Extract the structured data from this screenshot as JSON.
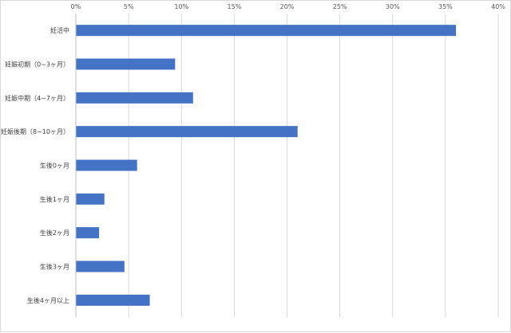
{
  "chart_data": {
    "type": "bar",
    "orientation": "horizontal",
    "categories": [
      "妊活中",
      "妊娠初期（0~3ヶ月）",
      "妊娠中期（4~7ヶ月）",
      "妊娠後期（8~10ヶ月）",
      "生後0ヶ月",
      "生後1ヶ月",
      "生後2ヶ月",
      "生後3ヶ月",
      "生後4ヶ月以上"
    ],
    "values": [
      36.0,
      9.4,
      11.1,
      21.0,
      5.8,
      2.7,
      2.2,
      4.6,
      7.0
    ],
    "value_unit": "%",
    "xlim": [
      0,
      40
    ],
    "x_ticks": [
      0,
      5,
      10,
      15,
      20,
      25,
      30,
      35,
      40
    ],
    "x_tick_labels": [
      "0%",
      "5%",
      "10%",
      "15%",
      "20%",
      "25%",
      "30%",
      "35%",
      "40%"
    ],
    "x_axis_position": "top",
    "grid": true,
    "legend": "none",
    "title": "",
    "xlabel": "",
    "ylabel": ""
  },
  "colors": {
    "bar": "#4472C4",
    "grid": "#d9d9d9",
    "text": "#404040"
  }
}
